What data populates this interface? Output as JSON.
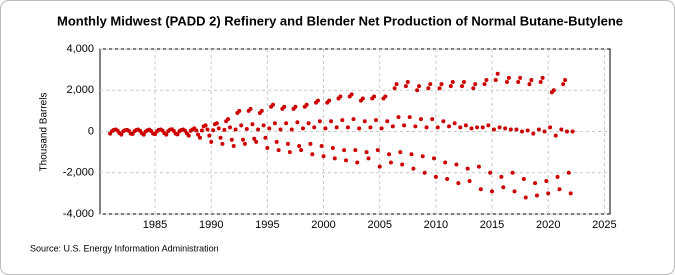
{
  "chart_data": {
    "type": "scatter",
    "title": "Monthly Midwest (PADD 2) Refinery and Blender Net Production of Normal Butane-Butylene",
    "y_label": "Thousand Barrels",
    "source": "Source: U.S. Energy Information Administration",
    "color": "#cc0000",
    "grid": true,
    "xlim": [
      1980.1,
      2025.5
    ],
    "xticks": [
      1985,
      1990,
      1995,
      2000,
      2005,
      2010,
      2015,
      2020,
      2025
    ],
    "ylim": [
      -4000,
      4000
    ],
    "yticks": [
      {
        "value": -4000,
        "label": "-4,000"
      },
      {
        "value": -2000,
        "label": "-2,000"
      },
      0,
      {
        "value": 2000,
        "label": "2,000"
      },
      {
        "value": 4000,
        "label": "4,000"
      }
    ],
    "x": [
      1981,
      1981.17,
      1981.33,
      1981.5,
      1981.67,
      1981.83,
      1982,
      1982.17,
      1982.33,
      1982.5,
      1982.67,
      1982.83,
      1983,
      1983.17,
      1983.33,
      1983.5,
      1983.67,
      1983.83,
      1984,
      1984.17,
      1984.33,
      1984.5,
      1984.67,
      1984.83,
      1985,
      1985.17,
      1985.33,
      1985.5,
      1985.67,
      1985.83,
      1986,
      1986.17,
      1986.33,
      1986.5,
      1986.67,
      1986.83,
      1987,
      1987.17,
      1987.33,
      1987.5,
      1987.67,
      1987.83,
      1988,
      1988.17,
      1988.33,
      1988.5,
      1988.67,
      1988.83,
      1989,
      1989.17,
      1989.33,
      1989.5,
      1989.67,
      1989.83,
      1990,
      1990.17,
      1990.33,
      1990.5,
      1990.67,
      1990.83,
      1991,
      1991.17,
      1991.33,
      1991.5,
      1991.67,
      1991.83,
      1992,
      1992.17,
      1992.33,
      1992.5,
      1992.67,
      1992.83,
      1993,
      1993.17,
      1993.33,
      1993.5,
      1993.67,
      1993.83,
      1994,
      1994.17,
      1994.33,
      1994.5,
      1994.67,
      1994.83,
      1995,
      1995.17,
      1995.33,
      1995.5,
      1995.67,
      1995.83,
      1996,
      1996.17,
      1996.33,
      1996.5,
      1996.67,
      1996.83,
      1997,
      1997.17,
      1997.33,
      1997.5,
      1997.67,
      1997.83,
      1998,
      1998.17,
      1998.33,
      1998.5,
      1998.67,
      1998.83,
      1999,
      1999.17,
      1999.33,
      1999.5,
      1999.67,
      1999.83,
      2000,
      2000.17,
      2000.33,
      2000.5,
      2000.67,
      2000.83,
      2001,
      2001.17,
      2001.33,
      2001.5,
      2001.67,
      2001.83,
      2002,
      2002.17,
      2002.33,
      2002.5,
      2002.67,
      2002.83,
      2003,
      2003.17,
      2003.33,
      2003.5,
      2003.67,
      2003.83,
      2004,
      2004.17,
      2004.33,
      2004.5,
      2004.67,
      2004.83,
      2005,
      2005.17,
      2005.33,
      2005.5,
      2005.67,
      2005.83,
      2006,
      2006.17,
      2006.33,
      2006.5,
      2006.67,
      2006.83,
      2007,
      2007.17,
      2007.33,
      2007.5,
      2007.67,
      2007.83,
      2008,
      2008.17,
      2008.33,
      2008.5,
      2008.67,
      2008.83,
      2009,
      2009.17,
      2009.33,
      2009.5,
      2009.67,
      2009.83,
      2010,
      2010.17,
      2010.33,
      2010.5,
      2010.67,
      2010.83,
      2011,
      2011.17,
      2011.33,
      2011.5,
      2011.67,
      2011.83,
      2012,
      2012.17,
      2012.33,
      2012.5,
      2012.67,
      2012.83,
      2013,
      2013.17,
      2013.33,
      2013.5,
      2013.67,
      2013.83,
      2014,
      2014.17,
      2014.33,
      2014.5,
      2014.67,
      2014.83,
      2015,
      2015.17,
      2015.33,
      2015.5,
      2015.67,
      2015.83,
      2016,
      2016.17,
      2016.33,
      2016.5,
      2016.67,
      2016.83,
      2017,
      2017.17,
      2017.33,
      2017.5,
      2017.67,
      2017.83,
      2018,
      2018.17,
      2018.33,
      2018.5,
      2018.67,
      2018.83,
      2019,
      2019.17,
      2019.33,
      2019.5,
      2019.67,
      2019.83,
      2020,
      2020.17,
      2020.33,
      2020.5,
      2020.67,
      2020.83,
      2021,
      2021.17,
      2021.33,
      2021.5,
      2021.67,
      2021.83,
      2022,
      2022.17
    ],
    "values": [
      -100,
      20,
      80,
      100,
      40,
      -80,
      -150,
      10,
      60,
      80,
      30,
      -100,
      -120,
      20,
      70,
      100,
      30,
      -90,
      -150,
      0,
      60,
      90,
      20,
      -100,
      -130,
      10,
      80,
      100,
      40,
      -80,
      -150,
      20,
      90,
      110,
      30,
      -100,
      -140,
      10,
      70,
      100,
      40,
      -90,
      -200,
      30,
      100,
      150,
      50,
      -150,
      -300,
      50,
      250,
      300,
      100,
      -200,
      -500,
      60,
      350,
      400,
      150,
      -300,
      -600,
      80,
      500,
      600,
      200,
      -400,
      -700,
      100,
      900,
      1000,
      300,
      -400,
      -600,
      120,
      1000,
      1100,
      350,
      -350,
      -500,
      100,
      900,
      1000,
      300,
      -300,
      -800,
      150,
      1200,
      1300,
      400,
      -500,
      -900,
      100,
      1100,
      1200,
      400,
      -600,
      -1000,
      100,
      1100,
      1200,
      450,
      -700,
      -900,
      150,
      1200,
      1300,
      400,
      -600,
      -1100,
      200,
      1400,
      1500,
      500,
      -700,
      -1200,
      150,
      1400,
      1500,
      500,
      -800,
      -1300,
      200,
      1600,
      1700,
      550,
      -900,
      -1400,
      200,
      1700,
      1800,
      600,
      -900,
      -1500,
      150,
      1500,
      1600,
      500,
      -1000,
      -1300,
      200,
      1600,
      1700,
      550,
      -900,
      -1700,
      150,
      1600,
      1700,
      500,
      -1100,
      -1500,
      250,
      2100,
      2300,
      700,
      -1000,
      -1600,
      300,
      2200,
      2400,
      700,
      -1100,
      -1800,
      250,
      2000,
      2200,
      600,
      -1200,
      -2000,
      200,
      2100,
      2300,
      600,
      -1300,
      -2200,
      200,
      2100,
      2300,
      500,
      -1500,
      -2300,
      250,
      2200,
      2400,
      400,
      -1600,
      -2500,
      200,
      2200,
      2400,
      300,
      -1800,
      -2400,
      150,
      2100,
      2300,
      200,
      -1700,
      -2800,
      200,
      2300,
      2500,
      300,
      -2000,
      -2900,
      100,
      2500,
      2800,
      200,
      -2200,
      -2700,
      150,
      2400,
      2600,
      100,
      -2000,
      -2900,
      100,
      2400,
      2600,
      0,
      -2300,
      -3200,
      50,
      2300,
      2500,
      -100,
      -2500,
      -3100,
      100,
      2400,
      2600,
      0,
      -2400,
      -3000,
      200,
      1900,
      2000,
      -200,
      -2200,
      -2800,
      100,
      2300,
      2500,
      0,
      -2000,
      -3000,
      0
    ]
  }
}
